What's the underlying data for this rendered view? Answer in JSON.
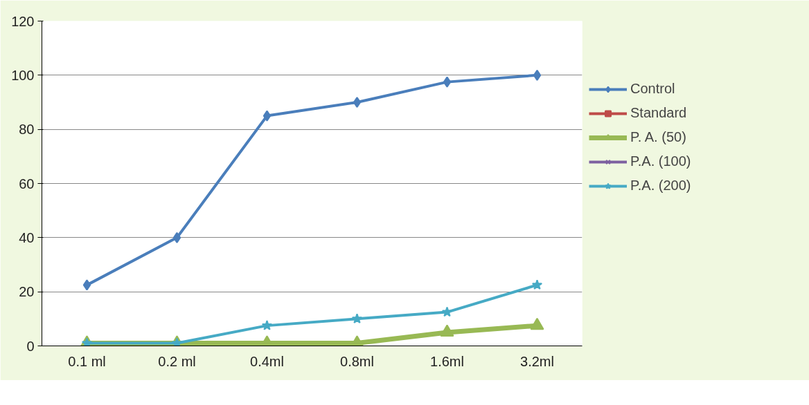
{
  "chart_data": {
    "type": "line",
    "categories": [
      "0.1 ml",
      "0.2 ml",
      "0.4ml",
      "0.8ml",
      "1.6ml",
      "3.2ml"
    ],
    "series": [
      {
        "name": "Control",
        "color": "#4a7ebb",
        "marker": "diamond",
        "values": [
          22.5,
          40,
          85,
          90,
          97.5,
          100
        ]
      },
      {
        "name": "Standard",
        "color": "#be4b48",
        "marker": "square",
        "values": [
          null,
          null,
          null,
          null,
          null,
          null
        ]
      },
      {
        "name": "P. A. (50)",
        "color": "#98b954",
        "marker": "triangle",
        "values": [
          1,
          1,
          1,
          1,
          5,
          7.5
        ]
      },
      {
        "name": "P.A. (100)",
        "color": "#7d60a0",
        "marker": "cross",
        "values": [
          null,
          null,
          null,
          null,
          null,
          null
        ]
      },
      {
        "name": "P.A. (200)",
        "color": "#46aac5",
        "marker": "star",
        "values": [
          1,
          1,
          7.5,
          10,
          12.5,
          22.5
        ]
      }
    ],
    "ylim": [
      0,
      120
    ],
    "yticks": [
      0,
      20,
      40,
      60,
      80,
      100,
      120
    ],
    "grid": "y",
    "legend": "right",
    "line_style": "solid"
  }
}
